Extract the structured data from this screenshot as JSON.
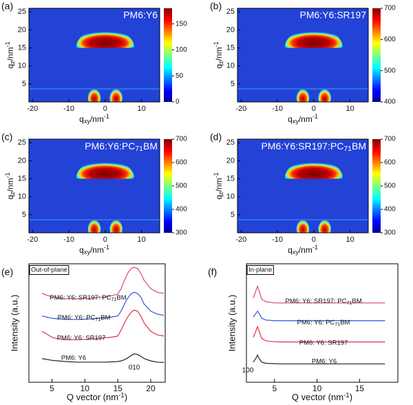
{
  "chart_data": [
    {
      "type": "heatmap",
      "panel": "(a)",
      "title": "PM6:Y6",
      "x_label": "qxy/nm-1",
      "y_label": "qz/nm-1",
      "xlim": [
        -21,
        15
      ],
      "xticks": [
        -20,
        -10,
        0,
        10
      ],
      "ylim": [
        0,
        26
      ],
      "yticks": [
        5,
        10,
        15,
        20,
        25
      ],
      "colormap": "jet",
      "clim": [
        0,
        180
      ],
      "cticks": [
        0,
        50,
        100,
        150
      ]
    },
    {
      "type": "heatmap",
      "panel": "(b)",
      "title": "PM6:Y6:SR197",
      "x_label": "qxy/nm-1",
      "y_label": "qz/nm-1",
      "xlim": [
        -21,
        15
      ],
      "xticks": [
        -20,
        -10,
        0,
        10
      ],
      "ylim": [
        0,
        26
      ],
      "yticks": [
        5,
        10,
        15,
        20,
        25
      ],
      "colormap": "jet",
      "clim": [
        400,
        700
      ],
      "cticks": [
        400,
        500,
        600,
        700
      ]
    },
    {
      "type": "heatmap",
      "panel": "(c)",
      "title": "PM6:Y6:PC71BM",
      "x_label": "qxy/nm-1",
      "y_label": "qz/nm-1",
      "xlim": [
        -21,
        15
      ],
      "xticks": [
        -20,
        -10,
        0,
        10
      ],
      "ylim": [
        0,
        26
      ],
      "yticks": [
        5,
        10,
        15,
        20,
        25
      ],
      "colormap": "jet",
      "clim": [
        300,
        700
      ],
      "cticks": [
        300,
        400,
        500,
        600,
        700
      ]
    },
    {
      "type": "heatmap",
      "panel": "(d)",
      "title": "PM6:Y6:SR197:PC71BM",
      "x_label": "qxy/nm-1",
      "y_label": "qz/nm-1",
      "xlim": [
        -21,
        15
      ],
      "xticks": [
        -20,
        -10,
        0,
        10
      ],
      "ylim": [
        0,
        26
      ],
      "yticks": [
        5,
        10,
        15,
        20,
        25
      ],
      "colormap": "jet",
      "clim": [
        300,
        700
      ],
      "cticks": [
        300,
        400,
        500,
        600,
        700
      ]
    },
    {
      "type": "line",
      "panel": "(e)",
      "annotation": "Out-of-plane",
      "peak_label": "010",
      "x_label": "Q vector (nm-1)",
      "y_label": "Intensity (a.u.)",
      "xlim": [
        1.5,
        22.2
      ],
      "xticks": [
        5,
        10,
        15,
        20
      ],
      "ylim": [
        0,
        10
      ],
      "x": [
        3.5,
        5,
        6,
        7,
        8,
        9,
        10,
        11,
        12,
        13,
        14,
        15,
        15.5,
        16,
        16.5,
        17,
        17.5,
        18,
        18.5,
        19,
        20,
        21,
        22
      ],
      "series": [
        {
          "name": "PM6: Y6",
          "color": "#222222",
          "values": [
            2.0,
            1.85,
            1.8,
            1.75,
            1.72,
            1.7,
            1.7,
            1.7,
            1.7,
            1.7,
            1.72,
            1.75,
            1.8,
            1.9,
            2.05,
            2.25,
            2.4,
            2.35,
            2.2,
            2.0,
            1.8,
            1.7,
            1.68
          ]
        },
        {
          "name": "PM6: Y6: SR197",
          "color": "#e0304a",
          "values": [
            4.3,
            3.8,
            3.65,
            3.6,
            3.6,
            3.6,
            3.62,
            3.65,
            3.7,
            3.75,
            3.8,
            3.9,
            4.4,
            5.0,
            5.5,
            5.9,
            6.1,
            6.0,
            5.6,
            5.0,
            4.3,
            4.0,
            3.9
          ]
        },
        {
          "name": "PM6: Y6: PC71BM",
          "color": "#3355dd",
          "values": [
            5.6,
            5.4,
            5.35,
            5.3,
            5.3,
            5.3,
            5.32,
            5.35,
            5.4,
            5.45,
            5.5,
            5.6,
            6.0,
            6.6,
            7.1,
            7.45,
            7.6,
            7.5,
            7.2,
            6.6,
            6.0,
            5.75,
            5.65
          ]
        },
        {
          "name": "PM6: Y6: SR197: PC71BM",
          "color": "#d4448a",
          "values": [
            7.5,
            7.2,
            7.1,
            7.05,
            7.05,
            7.05,
            7.08,
            7.1,
            7.15,
            7.2,
            7.3,
            7.45,
            7.9,
            8.6,
            9.2,
            9.6,
            9.7,
            9.6,
            9.2,
            8.6,
            7.9,
            7.6,
            7.5
          ]
        }
      ]
    },
    {
      "type": "line",
      "panel": "(f)",
      "annotation": "In-plane",
      "peak_label": "100",
      "x_label": "Q vector (nm-1)",
      "y_label": "Intensity (a.u.)",
      "xlim": [
        1.7,
        19.5
      ],
      "xticks": [
        5,
        10,
        15
      ],
      "ylim": [
        0,
        10
      ],
      "x": [
        2.5,
        2.8,
        3,
        3.2,
        3.5,
        4,
        5,
        6,
        7,
        8,
        9,
        10,
        11,
        12,
        13,
        14,
        15,
        16,
        17,
        18
      ],
      "series": [
        {
          "name": "PM6: Y6",
          "color": "#222222",
          "values": [
            1.7,
            2.0,
            2.3,
            2.0,
            1.7,
            1.6,
            1.57,
            1.55,
            1.55,
            1.55,
            1.55,
            1.55,
            1.55,
            1.55,
            1.55,
            1.55,
            1.55,
            1.55,
            1.55,
            1.55
          ]
        },
        {
          "name": "PM6: Y6: SR197",
          "color": "#e0304a",
          "values": [
            3.8,
            4.3,
            4.7,
            4.3,
            3.7,
            3.5,
            3.42,
            3.4,
            3.4,
            3.4,
            3.4,
            3.4,
            3.4,
            3.4,
            3.4,
            3.4,
            3.4,
            3.4,
            3.4,
            3.4
          ]
        },
        {
          "name": "PM6: Y6: PC71BM",
          "color": "#3355dd",
          "values": [
            5.5,
            5.8,
            6.0,
            5.8,
            5.4,
            5.25,
            5.2,
            5.2,
            5.2,
            5.2,
            5.2,
            5.2,
            5.2,
            5.2,
            5.2,
            5.2,
            5.2,
            5.2,
            5.2,
            5.2
          ]
        },
        {
          "name": "PM6: Y6: SR197: PC71BM",
          "color": "#d4448a",
          "values": [
            7.1,
            7.7,
            8.1,
            7.7,
            7.0,
            6.8,
            6.7,
            6.7,
            6.7,
            6.7,
            6.7,
            6.7,
            6.7,
            6.7,
            6.7,
            6.7,
            6.7,
            6.7,
            6.7,
            6.7
          ]
        }
      ]
    }
  ]
}
